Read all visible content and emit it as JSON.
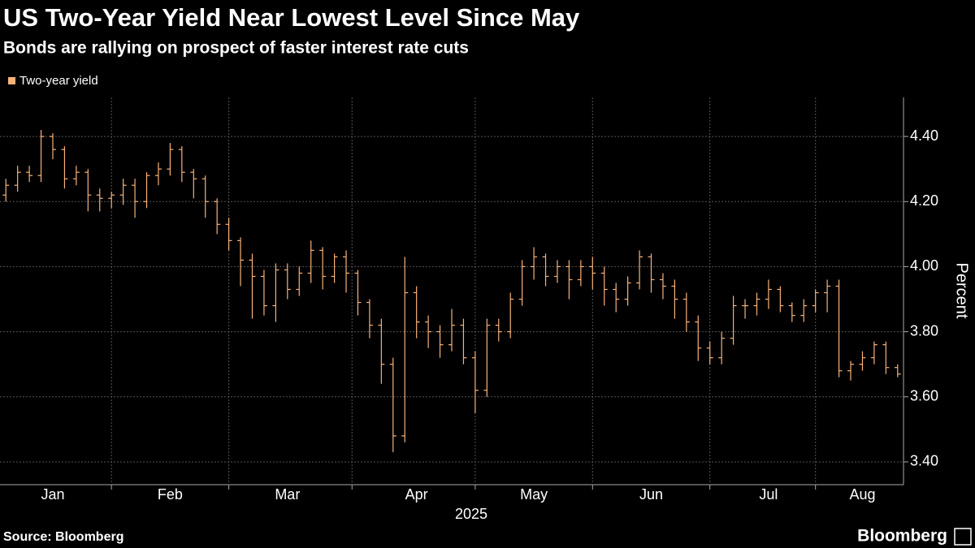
{
  "chart_data": {
    "type": "ohlc",
    "title": "US Two-Year Yield Near Lowest Level Since May",
    "subtitle": "Bonds are rallying on prospect of faster interest rate cuts",
    "x_label": "2025",
    "y_label": "Percent",
    "categories": [
      null,
      null,
      null,
      null,
      "Jan",
      null,
      null,
      null,
      null,
      null,
      null,
      null,
      null,
      null,
      "Feb",
      null,
      null,
      null,
      null,
      null,
      null,
      null,
      null,
      null,
      "Mar",
      null,
      null,
      null,
      null,
      null,
      null,
      null,
      null,
      null,
      null,
      "Apr",
      null,
      null,
      null,
      null,
      null,
      null,
      null,
      null,
      null,
      "May",
      null,
      null,
      null,
      null,
      null,
      null,
      null,
      null,
      null,
      "Jun",
      null,
      null,
      null,
      null,
      null,
      null,
      null,
      null,
      null,
      "Jul",
      null,
      null,
      null,
      null,
      null,
      null,
      null,
      "Aug",
      null,
      null,
      null
    ],
    "series": [
      {
        "name": "Two-year yield",
        "color": "#f7b27a",
        "open": [
          4.22,
          4.25,
          4.29,
          4.28,
          4.4,
          4.36,
          4.27,
          4.29,
          4.22,
          4.21,
          4.22,
          4.25,
          4.2,
          4.28,
          4.3,
          4.36,
          4.29,
          4.27,
          4.2,
          4.13,
          4.08,
          4.02,
          3.97,
          3.88,
          3.99,
          3.93,
          3.98,
          4.05,
          3.97,
          4.03,
          3.98,
          3.89,
          3.82,
          3.7,
          3.48,
          3.92,
          3.83,
          3.8,
          3.76,
          3.82,
          3.72,
          3.62,
          3.82,
          3.8,
          3.9,
          4.0,
          4.03,
          3.97,
          4.0,
          3.96,
          4.0,
          3.98,
          3.93,
          3.9,
          3.95,
          4.03,
          3.96,
          3.94,
          3.9,
          3.83,
          3.75,
          3.72,
          3.78,
          3.88,
          3.88,
          3.9,
          3.93,
          3.88,
          3.85,
          3.88,
          3.92,
          3.94,
          3.68,
          3.7,
          3.72,
          3.76,
          3.69
        ],
        "high": [
          4.27,
          4.31,
          4.31,
          4.42,
          4.41,
          4.37,
          4.31,
          4.3,
          4.24,
          4.23,
          4.27,
          4.27,
          4.29,
          4.32,
          4.38,
          4.37,
          4.3,
          4.28,
          4.21,
          4.15,
          4.09,
          4.04,
          3.99,
          4.01,
          4.01,
          4.0,
          4.08,
          4.06,
          4.04,
          4.05,
          3.99,
          3.9,
          3.84,
          3.72,
          4.03,
          3.94,
          3.85,
          3.82,
          3.87,
          3.84,
          3.74,
          3.84,
          3.84,
          3.92,
          4.02,
          4.06,
          4.04,
          4.02,
          4.02,
          4.02,
          4.03,
          4.0,
          3.95,
          3.97,
          4.05,
          4.04,
          3.98,
          3.96,
          3.92,
          3.85,
          3.77,
          3.8,
          3.91,
          3.9,
          3.92,
          3.96,
          3.94,
          3.89,
          3.9,
          3.93,
          3.96,
          3.96,
          3.71,
          3.74,
          3.77,
          3.77,
          3.7
        ],
        "low": [
          4.2,
          4.23,
          4.26,
          4.26,
          4.33,
          4.24,
          4.25,
          4.17,
          4.17,
          4.18,
          4.19,
          4.15,
          4.18,
          4.25,
          4.28,
          4.26,
          4.21,
          4.15,
          4.1,
          4.05,
          3.94,
          3.84,
          3.85,
          3.83,
          3.9,
          3.91,
          3.95,
          3.93,
          3.95,
          3.92,
          3.85,
          3.78,
          3.64,
          3.43,
          3.46,
          3.78,
          3.75,
          3.72,
          3.74,
          3.7,
          3.55,
          3.6,
          3.77,
          3.78,
          3.88,
          3.96,
          3.94,
          3.95,
          3.9,
          3.94,
          3.93,
          3.88,
          3.86,
          3.88,
          3.93,
          3.92,
          3.9,
          3.84,
          3.8,
          3.71,
          3.7,
          3.7,
          3.76,
          3.84,
          3.85,
          3.87,
          3.86,
          3.83,
          3.83,
          3.86,
          3.86,
          3.66,
          3.65,
          3.68,
          3.7,
          3.67,
          3.66
        ],
        "close": [
          4.25,
          4.29,
          4.28,
          4.4,
          4.36,
          4.27,
          4.29,
          4.22,
          4.21,
          4.22,
          4.25,
          4.2,
          4.28,
          4.3,
          4.36,
          4.29,
          4.27,
          4.2,
          4.13,
          4.08,
          4.02,
          3.97,
          3.88,
          3.99,
          3.93,
          3.98,
          4.05,
          3.97,
          4.03,
          3.98,
          3.89,
          3.82,
          3.7,
          3.48,
          3.92,
          3.83,
          3.8,
          3.76,
          3.82,
          3.72,
          3.62,
          3.82,
          3.8,
          3.9,
          4.0,
          4.03,
          3.97,
          4.0,
          3.96,
          4.0,
          3.98,
          3.93,
          3.9,
          3.95,
          4.03,
          3.96,
          3.94,
          3.9,
          3.83,
          3.75,
          3.72,
          3.78,
          3.88,
          3.88,
          3.9,
          3.93,
          3.88,
          3.85,
          3.88,
          3.92,
          3.94,
          3.68,
          3.7,
          3.72,
          3.76,
          3.69,
          3.67
        ]
      }
    ],
    "ylim": [
      3.33,
      4.52
    ],
    "yticks": [
      {
        "value": 3.4,
        "label": "3.40"
      },
      {
        "value": 3.6,
        "label": "3.60"
      },
      {
        "value": 3.8,
        "label": "3.80"
      },
      {
        "value": 4.0,
        "label": "4.00"
      },
      {
        "value": 4.2,
        "label": "4.20"
      },
      {
        "value": 4.4,
        "label": "4.40"
      }
    ],
    "grid": true
  },
  "footer": {
    "source": "Source: Bloomberg",
    "brand": "Bloomberg"
  }
}
